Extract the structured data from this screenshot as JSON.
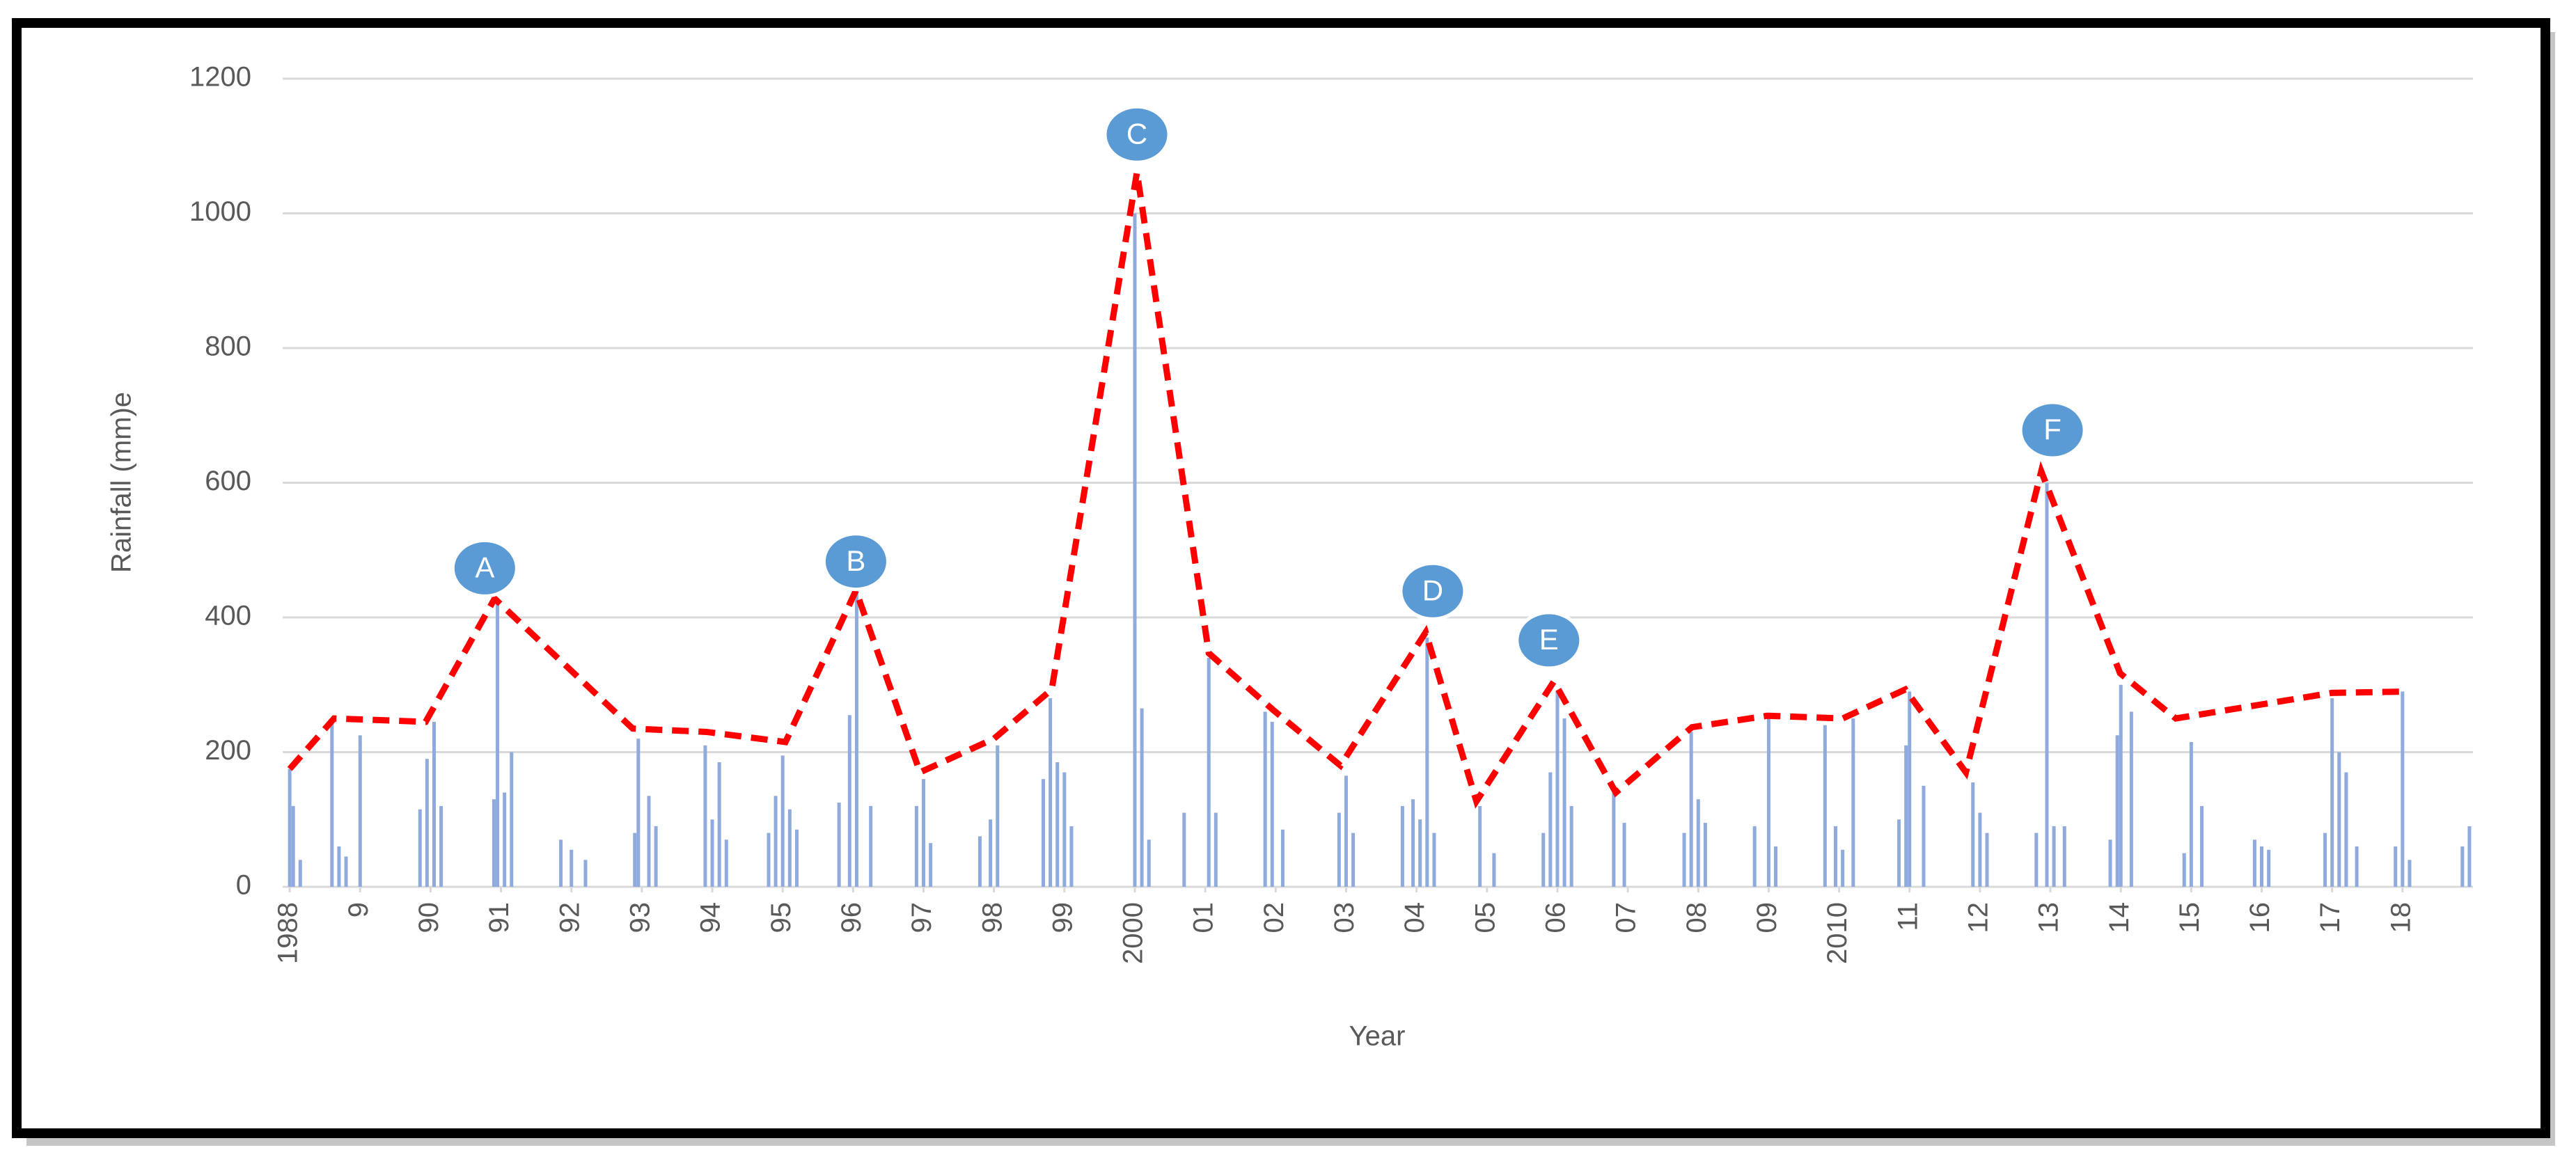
{
  "chart_data": {
    "type": "bar",
    "x_label": "Year",
    "y_label": "Rainfall (mm)e",
    "xlim": [
      1987.9,
      2019.0
    ],
    "ylim": [
      0,
      1200
    ],
    "yticks": [
      0,
      200,
      400,
      600,
      800,
      1000,
      1200
    ],
    "xticks": [
      1988,
      {
        "value": 1989,
        "label": "9"
      },
      {
        "value": 1990,
        "label": "90"
      },
      {
        "value": 1991,
        "label": "91"
      },
      {
        "value": 1992,
        "label": "92"
      },
      {
        "value": 1993,
        "label": "93"
      },
      {
        "value": 1994,
        "label": "94"
      },
      {
        "value": 1995,
        "label": "95"
      },
      {
        "value": 1996,
        "label": "96"
      },
      {
        "value": 1997,
        "label": "97"
      },
      {
        "value": 1998,
        "label": "98"
      },
      {
        "value": 1999,
        "label": "99"
      },
      2000,
      {
        "value": 2001,
        "label": "01"
      },
      {
        "value": 2002,
        "label": "02"
      },
      {
        "value": 2003,
        "label": "03"
      },
      {
        "value": 2004,
        "label": "04"
      },
      {
        "value": 2005,
        "label": "05"
      },
      {
        "value": 2006,
        "label": "06"
      },
      {
        "value": 2007,
        "label": "07"
      },
      {
        "value": 2008,
        "label": "08"
      },
      {
        "value": 2009,
        "label": "09"
      },
      2010,
      {
        "value": 2011,
        "label": "11"
      },
      {
        "value": 2012,
        "label": "12"
      },
      {
        "value": 2013,
        "label": "13"
      },
      {
        "value": 2014,
        "label": "14"
      },
      {
        "value": 2015,
        "label": "15"
      },
      {
        "value": 2016,
        "label": "16"
      },
      {
        "value": 2017,
        "label": "17"
      },
      {
        "value": 2018,
        "label": "18"
      }
    ],
    "grid": true,
    "series": [
      {
        "type": "bar",
        "color": "#8faadc",
        "x": [
          1988.0,
          1988.05,
          1988.15,
          1988.6,
          1988.7,
          1988.8,
          1989.0,
          1989.85,
          1989.95,
          1990.05,
          1990.15,
          1990.9,
          1990.95,
          1991.05,
          1991.15,
          1991.85,
          1992.0,
          1992.2,
          1992.9,
          1992.95,
          1993.1,
          1993.2,
          1993.9,
          1994.0,
          1994.1,
          1994.2,
          1994.8,
          1994.9,
          1995.0,
          1995.1,
          1995.2,
          1995.8,
          1995.95,
          1996.05,
          1996.25,
          1996.9,
          1997.0,
          1997.1,
          1997.8,
          1997.95,
          1998.05,
          1998.7,
          1998.8,
          1998.9,
          1999.0,
          1999.1,
          2000.0,
          2000.1,
          2000.2,
          2000.7,
          2001.05,
          2001.15,
          2001.85,
          2001.95,
          2002.1,
          2002.9,
          2003.0,
          2003.1,
          2003.8,
          2003.95,
          2004.05,
          2004.15,
          2004.25,
          2004.9,
          2005.1,
          2005.8,
          2005.9,
          2006.0,
          2006.1,
          2006.2,
          2006.8,
          2006.95,
          2007.8,
          2007.9,
          2008.0,
          2008.1,
          2008.8,
          2009.0,
          2009.1,
          2009.8,
          2009.95,
          2010.05,
          2010.2,
          2010.85,
          2010.95,
          2011.0,
          2011.2,
          2011.9,
          2012.0,
          2012.1,
          2012.8,
          2012.95,
          2013.05,
          2013.2,
          2013.85,
          2013.95,
          2014.0,
          2014.15,
          2014.9,
          2015.0,
          2015.15,
          2015.9,
          2016.0,
          2016.1,
          2016.9,
          2017.0,
          2017.1,
          2017.2,
          2017.35,
          2017.9,
          2018.0,
          2018.1,
          2018.85,
          2018.95
        ],
        "values": [
          175,
          120,
          40,
          245,
          60,
          45,
          225,
          115,
          190,
          245,
          120,
          130,
          428,
          140,
          200,
          70,
          55,
          40,
          80,
          220,
          135,
          90,
          210,
          100,
          185,
          70,
          80,
          135,
          195,
          115,
          85,
          125,
          255,
          440,
          120,
          120,
          160,
          65,
          75,
          100,
          210,
          160,
          280,
          185,
          170,
          90,
          1000,
          265,
          70,
          110,
          340,
          110,
          260,
          245,
          85,
          110,
          165,
          80,
          120,
          130,
          100,
          370,
          80,
          120,
          50,
          80,
          170,
          290,
          250,
          120,
          140,
          95,
          80,
          230,
          130,
          95,
          90,
          250,
          60,
          240,
          90,
          55,
          250,
          100,
          210,
          290,
          150,
          155,
          110,
          80,
          80,
          600,
          90,
          90,
          70,
          225,
          300,
          260,
          50,
          215,
          120,
          70,
          60,
          55,
          80,
          280,
          200,
          170,
          60,
          60,
          290,
          40,
          60,
          90
        ]
      },
      {
        "type": "line",
        "color": "#ff0000",
        "x": [
          1988.0,
          1988.63,
          1989.93,
          1990.91,
          1992.87,
          1993.92,
          1995.04,
          1996.04,
          1996.95,
          1998.0,
          1998.82,
          2000.03,
          2001.05,
          2001.96,
          2002.92,
          2004.13,
          2004.85,
          2005.95,
          2006.83,
          2007.91,
          2008.98,
          2010.05,
          2010.94,
          2011.8,
          2012.87,
          2013.99,
          2014.78,
          2017.0,
          2018.07
        ],
        "values": [
          175,
          250,
          245,
          428,
          235,
          230,
          215,
          440,
          170,
          220,
          293,
          1061,
          347,
          263,
          180,
          378,
          127,
          305,
          140,
          237,
          254,
          250,
          293,
          170,
          617,
          317,
          250,
          288,
          290
        ]
      }
    ],
    "annotations": [
      {
        "text": "A",
        "x": 1990.77,
        "y": 473
      },
      {
        "text": "B",
        "x": 1996.04,
        "y": 483
      },
      {
        "text": "C",
        "x": 2000.03,
        "y": 1117
      },
      {
        "text": "D",
        "x": 2004.23,
        "y": 439
      },
      {
        "text": "E",
        "x": 2005.88,
        "y": 366
      },
      {
        "text": "F",
        "x": 2013.03,
        "y": 678
      }
    ]
  }
}
